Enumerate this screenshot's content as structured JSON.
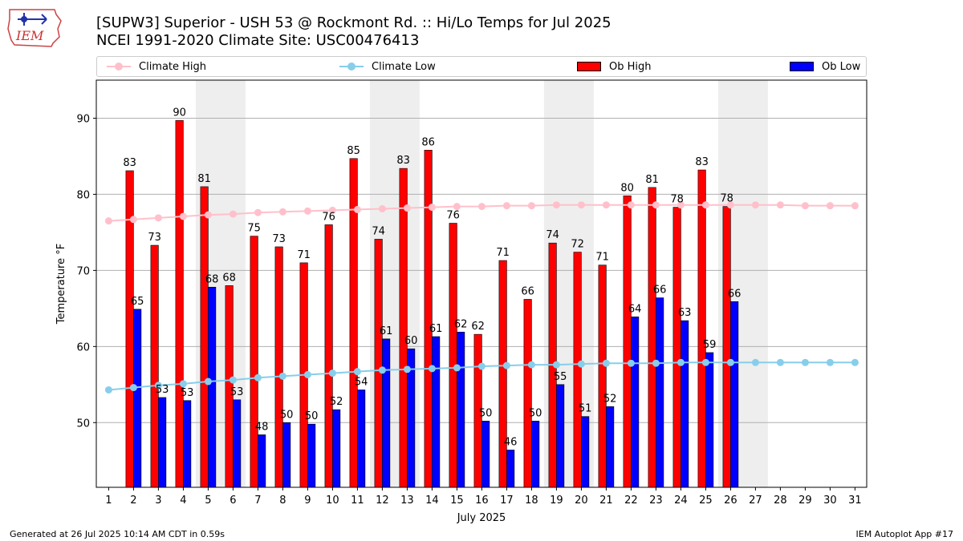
{
  "header": {
    "title_line1": "[SUPW3] Superior - USH 53 @ Rockmont Rd. :: Hi/Lo Temps for Jul 2025",
    "title_line2": "NCEI 1991-2020 Climate Site: USC00476413",
    "logo_text": "IEM"
  },
  "footer": {
    "generated": "Generated at 26 Jul 2025 10:14 AM CDT in 0.59s",
    "app": "IEM Autoplot App #17"
  },
  "colors": {
    "ob_high": "#ff0000",
    "ob_low": "#0000ff",
    "climate_high": "#ffc0cb",
    "climate_low": "#87ceeb",
    "weekend_band": "#eeeeee",
    "grid": "#b0b0b0"
  },
  "chart_data": {
    "type": "bar",
    "xlabel": "July 2025",
    "ylabel": "Temperature °F",
    "ylim": [
      41.5,
      95
    ],
    "yticks": [
      50,
      60,
      70,
      80,
      90
    ],
    "grid": "horizontal",
    "legend_position": "top",
    "categories": [
      "1",
      "2",
      "3",
      "4",
      "5",
      "6",
      "7",
      "8",
      "9",
      "10",
      "11",
      "12",
      "13",
      "14",
      "15",
      "16",
      "17",
      "18",
      "19",
      "20",
      "21",
      "22",
      "23",
      "24",
      "25",
      "26",
      "27",
      "28",
      "29",
      "30",
      "31"
    ],
    "weekend_bands": [
      [
        "5",
        "6"
      ],
      [
        "12",
        "13"
      ],
      [
        "19",
        "20"
      ],
      [
        "26",
        "27"
      ]
    ],
    "series": [
      {
        "name": "Climate High",
        "kind": "line",
        "values": [
          76.5,
          76.7,
          76.9,
          77.1,
          77.3,
          77.4,
          77.6,
          77.7,
          77.8,
          77.9,
          78.0,
          78.1,
          78.2,
          78.3,
          78.4,
          78.4,
          78.5,
          78.5,
          78.6,
          78.6,
          78.6,
          78.6,
          78.6,
          78.6,
          78.6,
          78.6,
          78.6,
          78.6,
          78.5,
          78.5,
          78.5
        ]
      },
      {
        "name": "Climate Low",
        "kind": "line",
        "values": [
          54.3,
          54.6,
          54.9,
          55.1,
          55.4,
          55.6,
          55.9,
          56.1,
          56.3,
          56.5,
          56.7,
          56.9,
          57.0,
          57.1,
          57.2,
          57.4,
          57.5,
          57.6,
          57.6,
          57.7,
          57.8,
          57.8,
          57.8,
          57.9,
          57.9,
          57.9,
          57.9,
          57.9,
          57.9,
          57.9,
          57.9
        ]
      },
      {
        "name": "Ob High",
        "kind": "bar",
        "values": [
          null,
          83,
          73,
          90,
          81,
          68,
          75,
          73,
          71,
          76,
          85,
          74,
          83,
          86,
          76,
          62,
          71,
          66,
          74,
          72,
          71,
          80,
          81,
          78,
          83,
          78,
          null,
          null,
          null,
          null,
          null
        ],
        "heights": [
          null,
          83.1,
          73.3,
          89.7,
          81.0,
          68.0,
          74.5,
          73.1,
          71.0,
          76.0,
          84.7,
          74.1,
          83.4,
          85.8,
          76.2,
          61.6,
          71.3,
          66.2,
          73.6,
          72.4,
          70.7,
          79.8,
          80.9,
          78.3,
          83.2,
          78.4,
          null,
          null,
          null,
          null,
          null
        ]
      },
      {
        "name": "Ob Low",
        "kind": "bar",
        "values": [
          null,
          65,
          53,
          53,
          68,
          53,
          48,
          50,
          50,
          52,
          54,
          61,
          60,
          61,
          62,
          50,
          46,
          50,
          55,
          51,
          52,
          64,
          66,
          63,
          59,
          66,
          null,
          null,
          null,
          null,
          null
        ],
        "heights": [
          null,
          64.9,
          53.3,
          52.9,
          67.8,
          53.0,
          48.4,
          50.0,
          49.8,
          51.7,
          54.3,
          61.0,
          59.7,
          61.3,
          61.9,
          50.2,
          46.4,
          50.2,
          55.0,
          50.8,
          52.1,
          63.9,
          66.4,
          63.4,
          59.2,
          65.9,
          null,
          null,
          null,
          null,
          null
        ]
      }
    ]
  }
}
